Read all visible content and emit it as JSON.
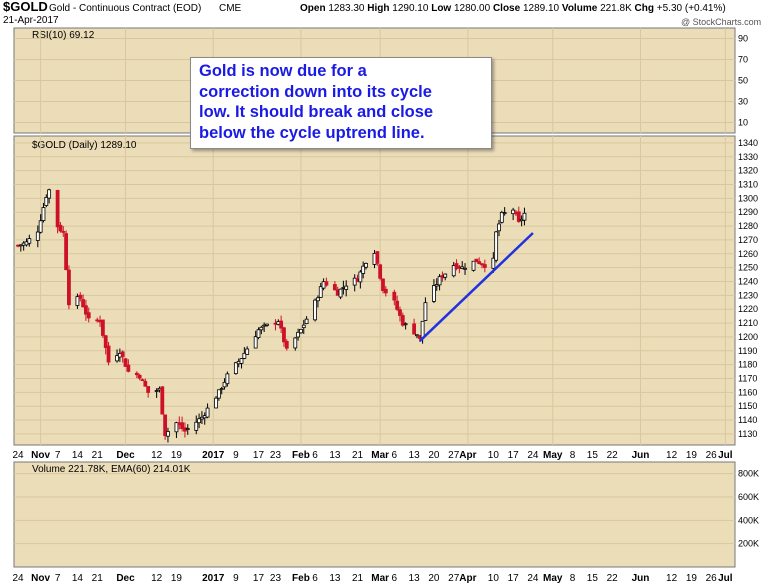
{
  "header": {
    "ticker": "$GOLD",
    "name": "Gold - Continuous Contract (EOD)",
    "exchange": "CME",
    "date": "21-Apr-2017",
    "stats": {
      "open_label": "Open",
      "open": "1283.30",
      "high_label": "High",
      "high": "1290.10",
      "low_label": "Low",
      "low": "1280.00",
      "close_label": "Close",
      "close": "1289.10",
      "volume_label": "Volume",
      "volume": "221.8K",
      "chg_label": "Chg",
      "chg": "+5.30 (+0.41%)"
    },
    "watermark": "@ StockCharts.com"
  },
  "annotation": {
    "lines": [
      "Gold is now due for a",
      "correction down into its cycle",
      "low. It should break and close",
      "below the cycle uptrend line."
    ]
  },
  "colors": {
    "panel_bg": "#ecddb9",
    "grid": "#d8c79e",
    "up": "#000000",
    "down": "#cc1128",
    "trendline": "#2233dd",
    "volume_line": "#ff8c00"
  },
  "chart_data": [
    {
      "type": "line",
      "legend": "RSI(10) 69.12",
      "ylim": [
        0,
        100
      ],
      "ticks": [
        "90",
        "70",
        "50",
        "30",
        "10"
      ],
      "tick_values": [
        90,
        70,
        50,
        30,
        10
      ],
      "last_value": 69.12
    },
    {
      "type": "candlestick",
      "legend": "$GOLD (Daily) 1289.10",
      "ylim": [
        1122,
        1345
      ],
      "ticks": [
        "1340",
        "1330",
        "1320",
        "1310",
        "1300",
        "1290",
        "1280",
        "1270",
        "1260",
        "1250",
        "1240",
        "1230",
        "1220",
        "1210",
        "1200",
        "1190",
        "1180",
        "1170",
        "1160",
        "1150",
        "1140",
        "1130"
      ],
      "tick_values": [
        1340,
        1330,
        1320,
        1310,
        1300,
        1290,
        1280,
        1270,
        1260,
        1250,
        1240,
        1230,
        1220,
        1210,
        1200,
        1190,
        1180,
        1170,
        1160,
        1150,
        1140,
        1130
      ],
      "date_axis_labels": [
        "24",
        "Nov",
        "7",
        "14",
        "21",
        "Dec",
        "12",
        "19",
        "2017",
        "9",
        "17",
        "23",
        "Feb",
        "6",
        "13",
        "21",
        "Mar",
        "6",
        "13",
        "20",
        "27",
        "Apr",
        "10",
        "17",
        "24",
        "May",
        "8",
        "15",
        "22",
        "Jun",
        "12",
        "19",
        "26",
        "Jul"
      ],
      "close_path": [
        {
          "date": "2016-10-24",
          "close": 1266
        },
        {
          "date": "2016-10-27",
          "close": 1268
        },
        {
          "date": "2016-10-31",
          "close": 1277
        },
        {
          "date": "2016-11-03",
          "close": 1302
        },
        {
          "date": "2016-11-04",
          "close": 1306
        },
        {
          "date": "2016-11-07",
          "close": 1280
        },
        {
          "date": "2016-11-09",
          "close": 1275
        },
        {
          "date": "2016-11-11",
          "close": 1225
        },
        {
          "date": "2016-11-15",
          "close": 1228
        },
        {
          "date": "2016-11-18",
          "close": 1212
        },
        {
          "date": "2016-11-22",
          "close": 1212
        },
        {
          "date": "2016-11-25",
          "close": 1182
        },
        {
          "date": "2016-11-29",
          "close": 1190
        },
        {
          "date": "2016-12-02",
          "close": 1175
        },
        {
          "date": "2016-12-06",
          "close": 1172
        },
        {
          "date": "2016-12-09",
          "close": 1160
        },
        {
          "date": "2016-12-13",
          "close": 1162
        },
        {
          "date": "2016-12-15",
          "close": 1130
        },
        {
          "date": "2016-12-19",
          "close": 1138
        },
        {
          "date": "2016-12-22",
          "close": 1132
        },
        {
          "date": "2016-12-28",
          "close": 1142
        },
        {
          "date": "2017-01-03",
          "close": 1160
        },
        {
          "date": "2017-01-06",
          "close": 1172
        },
        {
          "date": "2017-01-11",
          "close": 1185
        },
        {
          "date": "2017-01-17",
          "close": 1205
        },
        {
          "date": "2017-01-20",
          "close": 1208
        },
        {
          "date": "2017-01-24",
          "close": 1212
        },
        {
          "date": "2017-01-27",
          "close": 1190
        },
        {
          "date": "2017-02-01",
          "close": 1205
        },
        {
          "date": "2017-02-06",
          "close": 1225
        },
        {
          "date": "2017-02-09",
          "close": 1240
        },
        {
          "date": "2017-02-14",
          "close": 1232
        },
        {
          "date": "2017-02-17",
          "close": 1238
        },
        {
          "date": "2017-02-21",
          "close": 1242
        },
        {
          "date": "2017-02-24",
          "close": 1255
        },
        {
          "date": "2017-02-27",
          "close": 1262
        },
        {
          "date": "2017-03-02",
          "close": 1235
        },
        {
          "date": "2017-03-06",
          "close": 1225
        },
        {
          "date": "2017-03-09",
          "close": 1210
        },
        {
          "date": "2017-03-14",
          "close": 1202
        },
        {
          "date": "2017-03-15",
          "close": 1198
        },
        {
          "date": "2017-03-17",
          "close": 1225
        },
        {
          "date": "2017-03-22",
          "close": 1242
        },
        {
          "date": "2017-03-27",
          "close": 1252
        },
        {
          "date": "2017-03-30",
          "close": 1250
        },
        {
          "date": "2017-04-04",
          "close": 1255
        },
        {
          "date": "2017-04-07",
          "close": 1252
        },
        {
          "date": "2017-04-10",
          "close": 1255
        },
        {
          "date": "2017-04-11",
          "close": 1275
        },
        {
          "date": "2017-04-13",
          "close": 1288
        },
        {
          "date": "2017-04-17",
          "close": 1292
        },
        {
          "date": "2017-04-19",
          "close": 1282
        },
        {
          "date": "2017-04-21",
          "close": 1289
        }
      ],
      "trendline": {
        "start": {
          "date": "2017-03-15",
          "value": 1197
        },
        "end": {
          "date": "2017-04-24",
          "value": 1275
        }
      }
    },
    {
      "type": "bar",
      "legend": "Volume 221.78K, EMA(60) 214.01K",
      "ticks": [
        "800K",
        "600K",
        "400K",
        "200K"
      ],
      "tick_values": [
        800,
        600,
        400,
        200
      ],
      "ylim": [
        0,
        900
      ]
    }
  ]
}
